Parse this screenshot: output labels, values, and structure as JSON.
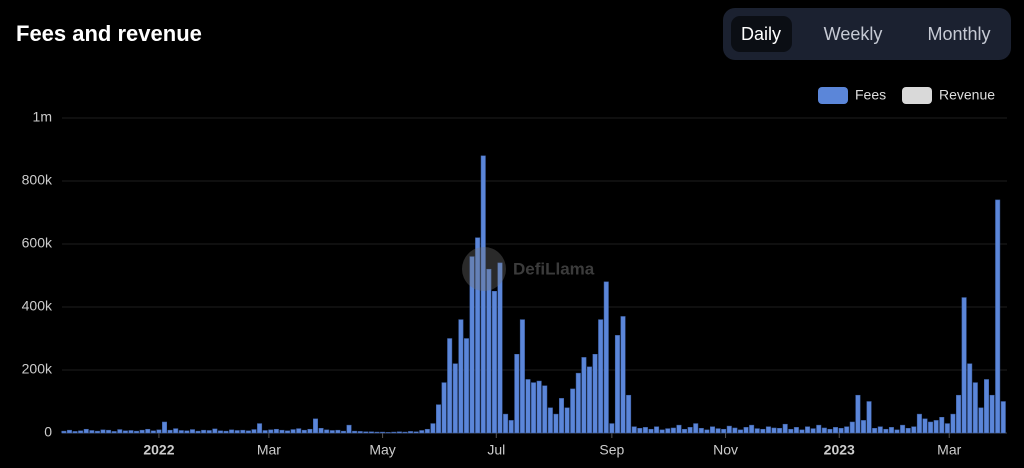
{
  "chart_data": {
    "type": "bar",
    "title": "Fees and revenue",
    "controls": [
      "Daily",
      "Weekly",
      "Monthly"
    ],
    "selected_control": 0,
    "watermark": "DefiLlama",
    "legend": [
      {
        "name": "Fees",
        "color": "#5b86d9"
      },
      {
        "name": "Revenue",
        "color": "#d9d9d9"
      }
    ],
    "x": [
      -51,
      -48,
      -45,
      -42,
      -39,
      -36,
      -33,
      -30,
      -27,
      -24,
      -21,
      -18,
      -15,
      -12,
      -9,
      -6,
      -3,
      0,
      3,
      6,
      9,
      12,
      15,
      18,
      21,
      24,
      27,
      30,
      33,
      36,
      39,
      42,
      45,
      48,
      51,
      54,
      57,
      60,
      63,
      66,
      69,
      72,
      75,
      78,
      81,
      84,
      87,
      90,
      93,
      96,
      99,
      102,
      105,
      108,
      111,
      114,
      117,
      120,
      123,
      126,
      129,
      132,
      135,
      138,
      141,
      144,
      147,
      150,
      153,
      156,
      159,
      162,
      165,
      168,
      171,
      174,
      177,
      180,
      183,
      186,
      189,
      192,
      195,
      198,
      201,
      204,
      207,
      210,
      213,
      216,
      219,
      222,
      225,
      228,
      231,
      234,
      237,
      240,
      243,
      246,
      249,
      252,
      255,
      258,
      261,
      264,
      267,
      270,
      273,
      276,
      279,
      282,
      285,
      288,
      291,
      294,
      297,
      300,
      303,
      306,
      309,
      312,
      315,
      318,
      321,
      324,
      327,
      330,
      333,
      336,
      339,
      342,
      345,
      348,
      351,
      354,
      357,
      360,
      363,
      366,
      369,
      372,
      375,
      378,
      381,
      384,
      387,
      390,
      393,
      396,
      399,
      402,
      405,
      408,
      411,
      414,
      417,
      420,
      423,
      426,
      429,
      432,
      435,
      438,
      441,
      444,
      447,
      450,
      453
    ],
    "series": [
      {
        "name": "Fees",
        "color": "#5b86d9",
        "values": [
          6000,
          9000,
          5000,
          7000,
          12000,
          8000,
          6000,
          10000,
          9000,
          5000,
          11000,
          7000,
          8000,
          6000,
          9000,
          12000,
          7000,
          10000,
          35000,
          9000,
          14000,
          8000,
          7000,
          11000,
          6000,
          9000,
          8000,
          13000,
          7000,
          6000,
          10000,
          8000,
          9000,
          7000,
          11000,
          30000,
          8000,
          10000,
          12000,
          9000,
          7000,
          11000,
          14000,
          9000,
          12000,
          45000,
          15000,
          10000,
          8000,
          9000,
          6000,
          25000,
          6000,
          5000,
          4000,
          4000,
          3000,
          3000,
          2000,
          3000,
          4000,
          3000,
          5000,
          4000,
          8000,
          12000,
          30000,
          90000,
          160000,
          300000,
          220000,
          360000,
          300000,
          560000,
          620000,
          880000,
          520000,
          450000,
          540000,
          60000,
          40000,
          250000,
          360000,
          170000,
          160000,
          165000,
          150000,
          80000,
          60000,
          110000,
          80000,
          140000,
          190000,
          240000,
          210000,
          250000,
          360000,
          480000,
          30000,
          310000,
          370000,
          120000,
          20000,
          15000,
          18000,
          12000,
          20000,
          10000,
          14000,
          16000,
          25000,
          12000,
          18000,
          30000,
          15000,
          10000,
          20000,
          14000,
          12000,
          22000,
          16000,
          10000,
          18000,
          25000,
          14000,
          12000,
          20000,
          16000,
          15000,
          28000,
          12000,
          18000,
          10000,
          20000,
          14000,
          25000,
          16000,
          12000,
          18000,
          15000,
          20000,
          35000,
          120000,
          40000,
          100000,
          15000,
          20000,
          12000,
          18000,
          10000,
          25000,
          15000,
          20000,
          60000,
          45000,
          35000,
          40000,
          50000,
          30000,
          60000,
          120000,
          430000,
          220000,
          160000,
          80000,
          170000,
          120000,
          740000,
          100000
        ]
      }
    ],
    "xlim": [
      -52,
      455
    ],
    "xticks": [
      {
        "value": 0,
        "label": "2022"
      },
      {
        "value": 59,
        "label": "Mar"
      },
      {
        "value": 120,
        "label": "May"
      },
      {
        "value": 181,
        "label": "Jul"
      },
      {
        "value": 243,
        "label": "Sep"
      },
      {
        "value": 304,
        "label": "Nov"
      },
      {
        "value": 365,
        "label": "2023"
      },
      {
        "value": 424,
        "label": "Mar"
      }
    ],
    "ylim": [
      0,
      1000000
    ],
    "yticks": [
      0,
      {
        "value": 200000,
        "label": "200k"
      },
      {
        "value": 400000,
        "label": "400k"
      },
      {
        "value": 600000,
        "label": "600k"
      },
      {
        "value": 800000,
        "label": "800k"
      },
      {
        "value": 1000000,
        "label": "1m"
      }
    ],
    "grid": true
  }
}
